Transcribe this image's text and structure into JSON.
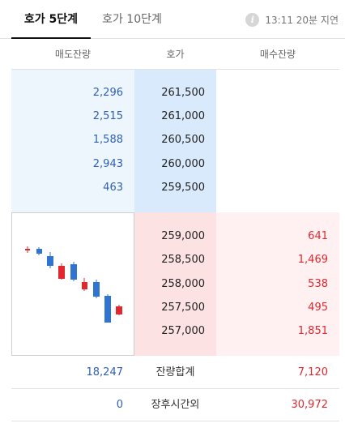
{
  "tabs": [
    {
      "label": "호가 5단계",
      "active": true
    },
    {
      "label": "호가 10단계",
      "active": false
    }
  ],
  "delay_notice": {
    "icon": "info-icon",
    "text": "13:11 20분 지연"
  },
  "columns": {
    "ask_qty": "매도잔량",
    "price": "호가",
    "bid_qty": "매수잔량"
  },
  "asks": [
    {
      "qty": "2,296",
      "price": "261,500"
    },
    {
      "qty": "2,515",
      "price": "261,000"
    },
    {
      "qty": "1,588",
      "price": "260,500"
    },
    {
      "qty": "2,943",
      "price": "260,000"
    },
    {
      "qty": "463",
      "price": "259,500"
    }
  ],
  "bids": [
    {
      "price": "259,000",
      "qty": "641"
    },
    {
      "price": "258,500",
      "qty": "1,469"
    },
    {
      "price": "258,000",
      "qty": "538"
    },
    {
      "price": "257,500",
      "qty": "495"
    },
    {
      "price": "257,000",
      "qty": "1,851"
    }
  ],
  "totals": {
    "ask": "18,247",
    "label": "잔량합계",
    "bid": "7,120"
  },
  "after_hours": {
    "ask": "0",
    "label": "장후시간외",
    "bid": "30,972"
  },
  "colors": {
    "up": "#e0282e",
    "down": "#2f74d0",
    "ask_text": "#2f5fb3"
  }
}
